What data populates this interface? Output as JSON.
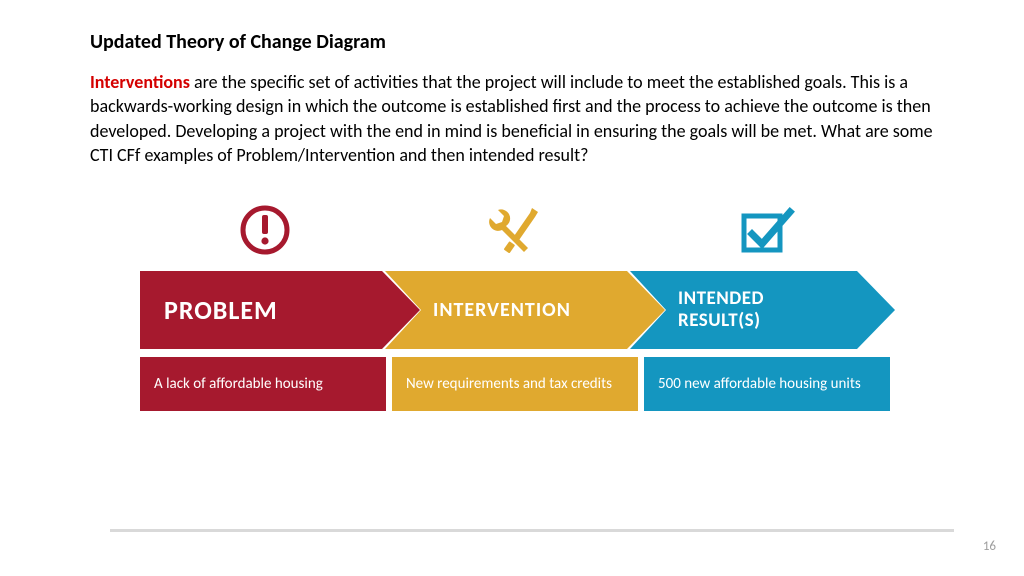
{
  "title": "Updated Theory of Change Diagram",
  "highlight_word": "Interventions",
  "highlight_color": "#d40000",
  "body_rest": " are the specific set of activities that the project will include to meet the established goals. This is a backwards-working design in which the outcome is established first and the process to achieve the outcome is then developed. Developing a project with the end in mind is beneficial in ensuring the goals will be met.  What are some CTI CFf examples of Problem/Intervention and then intended result?",
  "colors": {
    "problem": "#a6192e",
    "intervention": "#e0a92f",
    "result": "#1496c0",
    "divider": "#d9d9d9"
  },
  "stages": {
    "problem": {
      "label": "PROBLEM",
      "subtext": "A lack of affordable housing"
    },
    "intervention": {
      "label": "INTERVENTION",
      "subtext": "New requirements and tax credits"
    },
    "result": {
      "label": "INTENDED RESULT(S)",
      "subtext": "500 new affordable housing units"
    }
  },
  "page_number": "16",
  "fonts": {
    "title_pt": 20,
    "body_pt": 18,
    "arrow_big_pt": 26,
    "arrow_med_pt": 20,
    "sub_pt": 15
  }
}
